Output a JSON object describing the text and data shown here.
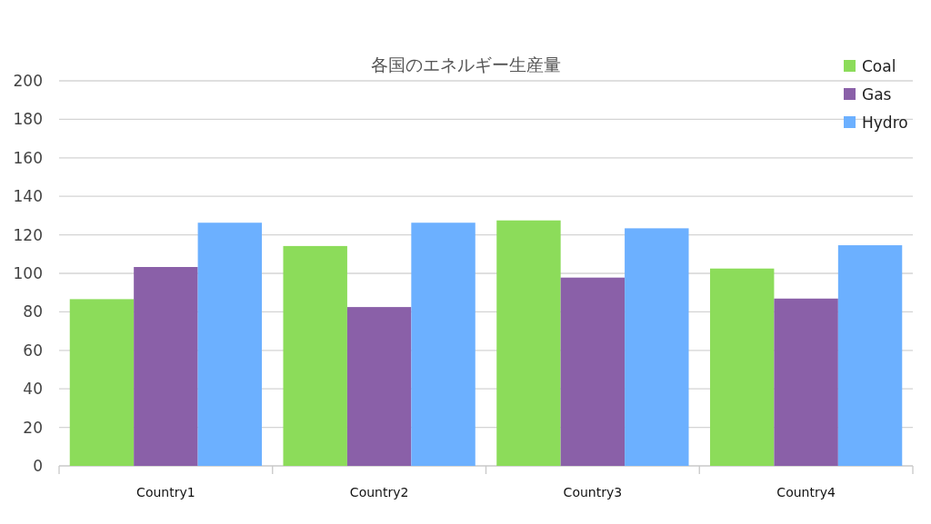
{
  "chart_data": {
    "type": "bar",
    "title": "各国のエネルギー生産量",
    "categories": [
      "Country1",
      "Country2",
      "Country3",
      "Country4"
    ],
    "series": [
      {
        "name": "Coal",
        "color": "#8cdc5a",
        "values": [
          86.6,
          114.2,
          127.5,
          102.5
        ]
      },
      {
        "name": "Gas",
        "color": "#8a60a8",
        "values": [
          103.3,
          82.5,
          97.8,
          86.9
        ]
      },
      {
        "name": "Hydro",
        "color": "#6cb0ff",
        "values": [
          126.3,
          126.3,
          123.4,
          114.6
        ]
      }
    ],
    "ylim": [
      0,
      200
    ],
    "yticks": [
      0,
      20,
      40,
      60,
      80,
      100,
      120,
      140,
      160,
      180,
      200
    ],
    "grid": "y",
    "legend": "top right"
  }
}
